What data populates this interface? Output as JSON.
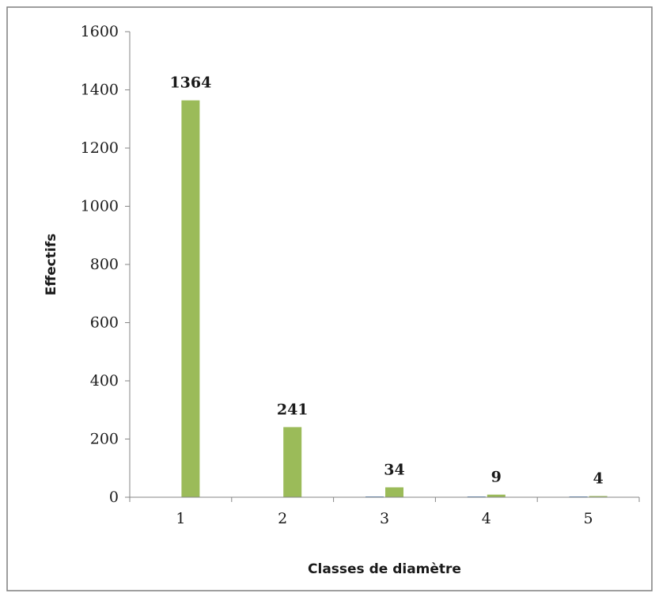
{
  "chart_data": {
    "type": "bar",
    "title": "",
    "xlabel": "Classes de diamètre",
    "ylabel": "Effectifs",
    "ylim": [
      0,
      1600
    ],
    "yticks": [
      0,
      200,
      400,
      600,
      800,
      1000,
      1200,
      1400,
      1600
    ],
    "categories": [
      "1",
      "2",
      "3",
      "4",
      "5"
    ],
    "series": [
      {
        "values": [
          0,
          0,
          2,
          2,
          2
        ],
        "color": "#4f81bd",
        "show_labels": false
      },
      {
        "values": [
          1364,
          241,
          34,
          9,
          4
        ],
        "color": "#9bbb59",
        "show_labels": true
      }
    ],
    "grid": false,
    "legend": "none",
    "frame_color": "#7f7f7f",
    "axis_color": "#868686"
  }
}
